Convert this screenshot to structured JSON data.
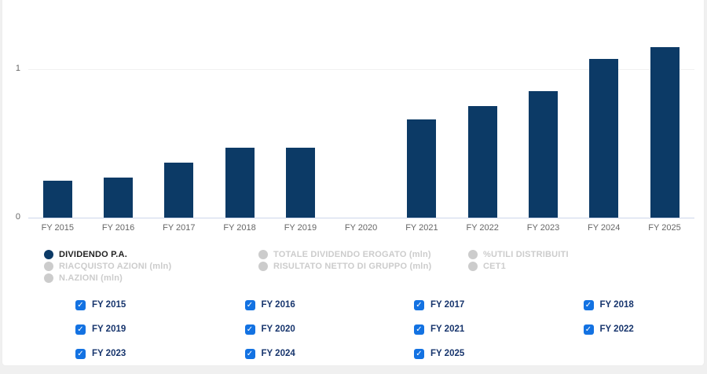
{
  "page": {
    "background_color": "#f0f0f0",
    "card_color": "#ffffff"
  },
  "chart_data": {
    "type": "bar",
    "title": "",
    "xlabel": "",
    "ylabel": "",
    "categories": [
      "FY 2015",
      "FY 2016",
      "FY 2017",
      "FY 2018",
      "FY 2019",
      "FY 2020",
      "FY 2021",
      "FY 2022",
      "FY 2023",
      "FY 2024",
      "FY 2025"
    ],
    "series": [
      {
        "name": "DIVIDENDO P.A.",
        "color": "#0c3a66",
        "values": [
          0.25,
          0.27,
          0.37,
          0.47,
          0.47,
          0,
          0.66,
          0.75,
          0.85,
          1.07,
          1.15
        ]
      }
    ],
    "ylim": [
      0,
      1.25
    ],
    "ytick_labels": [
      "0",
      "1"
    ],
    "grid": "horizontal",
    "legend_position": "bottom",
    "axis_line_color": "#ccd6eb",
    "grid_color": "#f1f1f1",
    "tick_label_color": "#666666"
  },
  "legend": {
    "active_color": "#0c3a66",
    "inactive_color": "#cccccc",
    "columns": [
      [
        {
          "label": "DIVIDENDO P.A.",
          "active": true
        },
        {
          "label": "RIACQUISTO AZIONI (mln)",
          "active": false
        },
        {
          "label": "N.AZIONI (mln)",
          "active": false
        }
      ],
      [
        {
          "label": "TOTALE DIVIDENDO EROGATO (mln)",
          "active": false
        },
        {
          "label": "RISULTATO NETTO DI GRUPPO (mln)",
          "active": false
        }
      ],
      [
        {
          "label": "%UTILI DISTRIBUITI",
          "active": false
        },
        {
          "label": "CET1",
          "active": false
        }
      ]
    ]
  },
  "filters": {
    "checkbox_color": "#1372e2",
    "check_glyph": "✓",
    "label_color": "#17356d",
    "items": [
      {
        "label": "FY 2015",
        "checked": true
      },
      {
        "label": "FY 2016",
        "checked": true
      },
      {
        "label": "FY 2017",
        "checked": true
      },
      {
        "label": "FY 2018",
        "checked": true
      },
      {
        "label": "FY 2019",
        "checked": true
      },
      {
        "label": "FY 2020",
        "checked": true
      },
      {
        "label": "FY 2021",
        "checked": true
      },
      {
        "label": "FY 2022",
        "checked": true
      },
      {
        "label": "FY 2023",
        "checked": true
      },
      {
        "label": "FY 2024",
        "checked": true
      },
      {
        "label": "FY 2025",
        "checked": true
      }
    ]
  }
}
